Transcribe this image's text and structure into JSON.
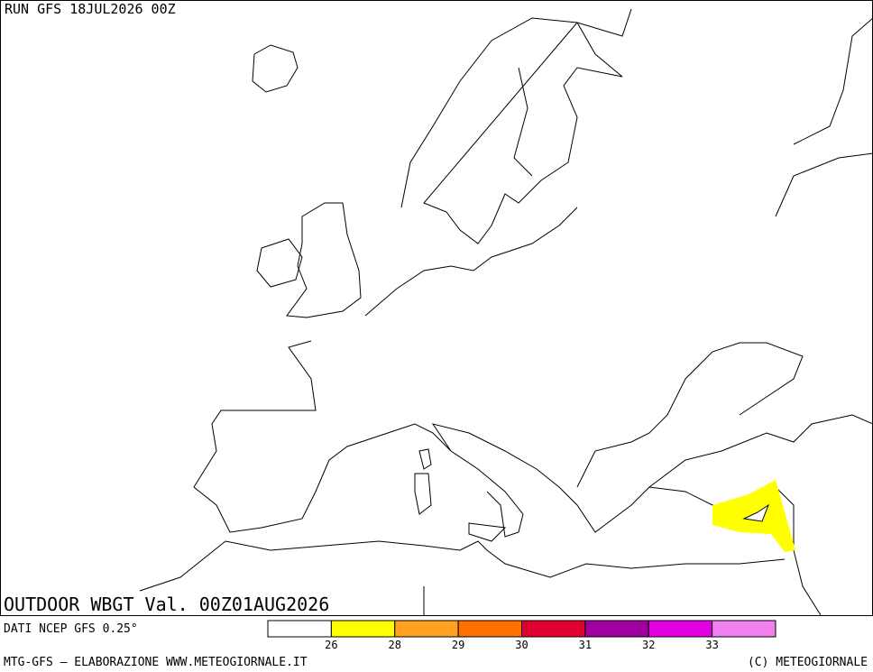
{
  "header": {
    "run": "RUN GFS 18JUL2026 00Z"
  },
  "map": {
    "title": "OUTDOOR WBGT Val. 00Z01AUG2026"
  },
  "legend": {
    "source": "DATI NCEP GFS 0.25°",
    "colors": [
      "#ffffff",
      "#ffff00",
      "#ffa020",
      "#ff7000",
      "#e00030",
      "#a000a0",
      "#e000e0",
      "#f080f0"
    ],
    "ticks": [
      26,
      28,
      29,
      30,
      31,
      32,
      33
    ]
  },
  "footer": {
    "left": "MTG-GFS – ELABORAZIONE WWW.METEOGIORNALE.IT",
    "right": "(C) METEOGIORNALE"
  }
}
